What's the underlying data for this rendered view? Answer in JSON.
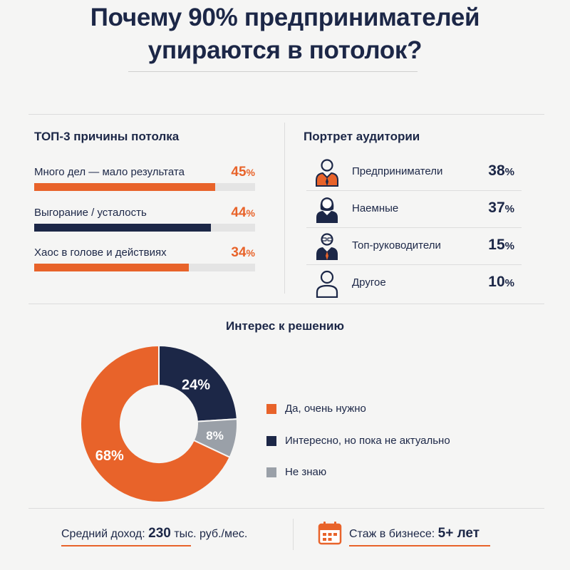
{
  "title": {
    "line1": "Почему 90% предпринимателей",
    "line2": "упираются в потолок?"
  },
  "reasons": {
    "title": "ТОП-3 причины потолка",
    "items": [
      {
        "label": "Много дел — мало результата",
        "value": "45",
        "unit": "%",
        "color": "#e8632a",
        "fraction": 0.82
      },
      {
        "label": "Выгорание / усталость",
        "value": "44",
        "unit": "%",
        "color": "#1c2747",
        "fraction": 0.8
      },
      {
        "label": "Хаос в голове и действиях",
        "value": "34",
        "unit": "%",
        "color": "#e8632a",
        "fraction": 0.7
      }
    ]
  },
  "audience": {
    "title": "Портрет аудитории",
    "items": [
      {
        "label": "Предприниматели",
        "value": "38",
        "unit": "%",
        "icon": "businessman-icon"
      },
      {
        "label": "Наемные",
        "value": "37",
        "unit": "%",
        "icon": "woman-icon"
      },
      {
        "label": "Топ-руководители",
        "value": "15",
        "unit": "%",
        "icon": "manager-icon"
      },
      {
        "label": "Другое",
        "value": "10",
        "unit": "%",
        "icon": "person-icon"
      }
    ]
  },
  "interest": {
    "title": "Интерес к решению",
    "legend": [
      {
        "label": "Да, очень нужно",
        "color": "#e8632a"
      },
      {
        "label": "Интересно, но пока не актуально",
        "color": "#1c2747"
      },
      {
        "label": "Не знаю",
        "color": "#9aa0a8"
      }
    ]
  },
  "chart_data": {
    "type": "pie",
    "title": "Интерес к решению",
    "categories": [
      "Да, очень нужно",
      "Интересно, но пока не актуально",
      "Не знаю"
    ],
    "values": [
      68,
      24,
      8
    ],
    "labels": [
      "68%",
      "24%",
      "8%"
    ],
    "colors": [
      "#e8632a",
      "#1c2747",
      "#9aa0a8"
    ]
  },
  "footer": {
    "income_label": "Средний доход:",
    "income_value": "230",
    "income_unit": "тыс. руб./мес.",
    "experience_label": "Стаж в бизнесе:",
    "experience_value": "5+ лет"
  }
}
